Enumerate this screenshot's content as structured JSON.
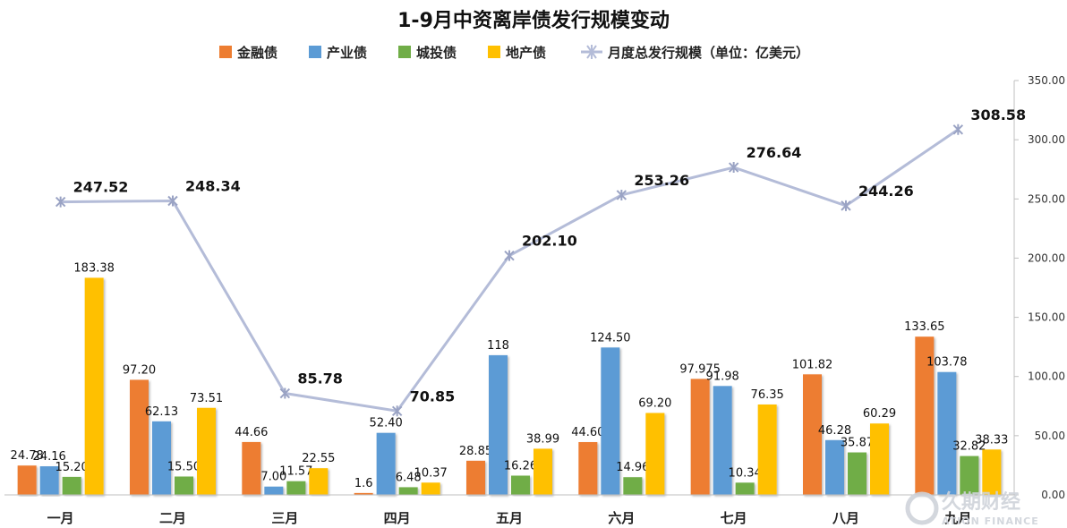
{
  "chart_data": {
    "type": "bar",
    "title": "1-9月中资离岸债发行规模变动",
    "categories": [
      "一月",
      "二月",
      "三月",
      "四月",
      "五月",
      "六月",
      "七月",
      "八月",
      "九月"
    ],
    "series": [
      {
        "name": "金融债",
        "color": "#ED7D31",
        "values": [
          24.78,
          97.2,
          44.66,
          1.6,
          28.85,
          44.6,
          97.975,
          101.82,
          133.65
        ],
        "labels": [
          "24.78",
          "97.20",
          "44.66",
          "1.6",
          "28.85",
          "44.60",
          "97.975",
          "101.82",
          "133.65"
        ]
      },
      {
        "name": "产业债",
        "color": "#5B9BD5",
        "values": [
          24.16,
          62.13,
          7.0,
          52.4,
          118,
          124.5,
          91.98,
          46.28,
          103.78
        ],
        "labels": [
          "24.16",
          "62.13",
          "7.00",
          "52.40",
          "118",
          "124.50",
          "91.98",
          "46.28",
          "103.78"
        ]
      },
      {
        "name": "城投债",
        "color": "#70AD47",
        "values": [
          15.2,
          15.5,
          11.57,
          6.48,
          16.26,
          14.96,
          10.34,
          35.87,
          32.82
        ],
        "labels": [
          "15.20",
          "15.50",
          "11.57",
          "6.48",
          "16.26",
          "14.96",
          "10.34",
          "35.87",
          "32.82"
        ]
      },
      {
        "name": "地产债",
        "color": "#FFC000",
        "values": [
          183.38,
          73.51,
          22.55,
          10.37,
          38.99,
          69.2,
          76.35,
          60.29,
          38.33
        ],
        "labels": [
          "183.38",
          "73.51",
          "22.55",
          "10.37",
          "38.99",
          "69.20",
          "76.35",
          "60.29",
          "38.33"
        ]
      }
    ],
    "line_series": {
      "name": "月度总发行规模（单位：亿美元）",
      "color": "#B4BCD8",
      "values": [
        247.52,
        248.34,
        85.78,
        70.85,
        202.1,
        253.26,
        276.64,
        244.26,
        308.58
      ],
      "labels": [
        "247.52",
        "248.34",
        "85.78",
        "70.85",
        "202.10",
        "253.26",
        "276.64",
        "244.26",
        "308.58"
      ]
    },
    "y_axis": {
      "position": "right",
      "ylim": [
        0,
        350
      ],
      "ticks": [
        "0.00",
        "50.00",
        "100.00",
        "150.00",
        "200.00",
        "250.00",
        "300.00",
        "350.00"
      ]
    },
    "grid": false,
    "legend_placement": "top"
  },
  "watermark": {
    "main": "久期财经",
    "sub": "ATION FINANCE"
  }
}
